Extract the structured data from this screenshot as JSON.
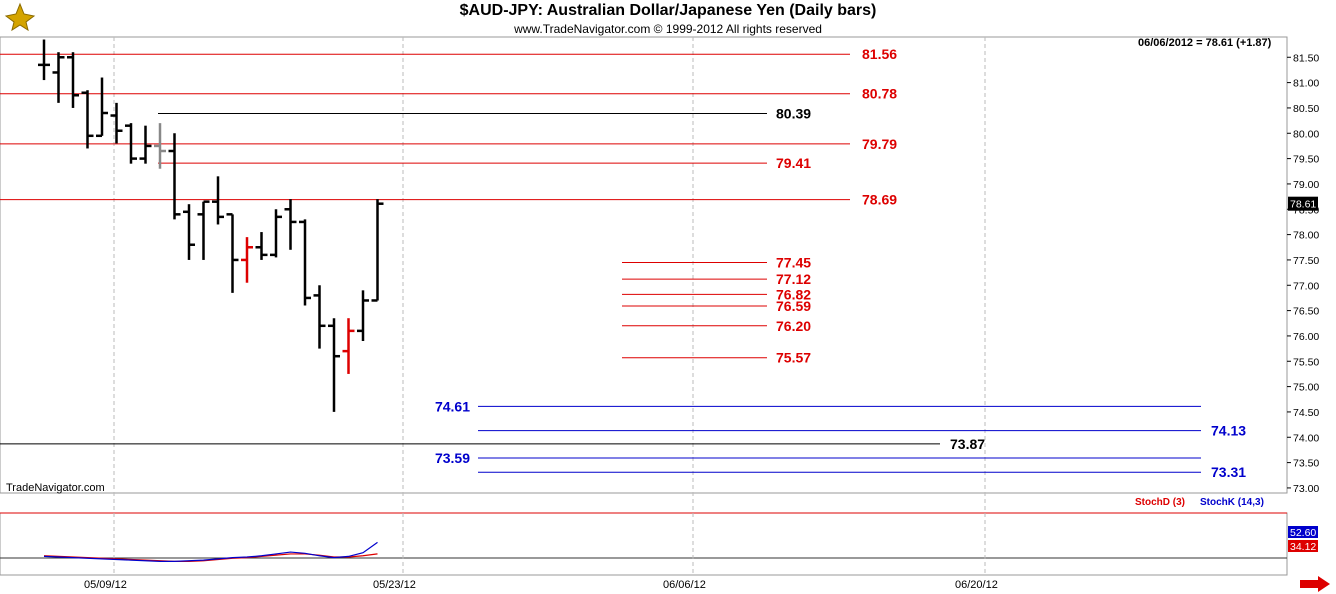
{
  "header": {
    "title": "$AUD-JPY:  Australian Dollar/Japanese Yen  (Daily bars)",
    "copyright": "www.TradeNavigator.com © 1999-2012 All rights reserved",
    "last_value_label": "06/06/2012 = 78.61 (+1.87)",
    "watermark": "TradeNavigator.com"
  },
  "indicator_panel": {
    "stochd_label": "StochD (3)",
    "stochk_label": "StochK (14,3)",
    "stochk_value": "52.60",
    "stochd_value": "34.12",
    "colors": {
      "stochd": "#dd0000",
      "stochk": "#0000cc"
    }
  },
  "chart_data": {
    "type": "ohlc",
    "title": "$AUD-JPY:  Australian Dollar/Japanese Yen  (Daily bars)",
    "price_axis": {
      "ylim": [
        72.9,
        81.9
      ],
      "ticks": [
        "73.00",
        "73.50",
        "74.00",
        "74.50",
        "75.00",
        "75.50",
        "76.00",
        "76.50",
        "77.00",
        "77.50",
        "78.00",
        "78.50",
        "79.00",
        "79.50",
        "80.00",
        "80.50",
        "81.00",
        "81.50"
      ],
      "last_price_tag": "78.61"
    },
    "date_axis": {
      "labels": [
        "05/09/12",
        "05/23/12",
        "06/06/12",
        "06/20/12"
      ]
    },
    "bars": [
      {
        "date": "05/01/12",
        "open": 81.35,
        "high": 81.85,
        "low": 81.05,
        "close": 81.35,
        "color": "black"
      },
      {
        "date": "05/02/12",
        "open": 81.2,
        "high": 81.6,
        "low": 80.6,
        "close": 81.5,
        "color": "black"
      },
      {
        "date": "05/03/12",
        "open": 81.5,
        "high": 81.6,
        "low": 80.5,
        "close": 80.75,
        "color": "black"
      },
      {
        "date": "05/04/12",
        "open": 80.8,
        "high": 80.85,
        "low": 79.7,
        "close": 79.95,
        "color": "black"
      },
      {
        "date": "05/07/12",
        "open": 79.95,
        "high": 81.1,
        "low": 79.95,
        "close": 80.4,
        "color": "black"
      },
      {
        "date": "05/08/12",
        "open": 80.35,
        "high": 80.6,
        "low": 79.8,
        "close": 80.05,
        "color": "black"
      },
      {
        "date": "05/09/12",
        "open": 80.15,
        "high": 80.2,
        "low": 79.4,
        "close": 79.5,
        "color": "black"
      },
      {
        "date": "05/10/12",
        "open": 79.5,
        "high": 80.15,
        "low": 79.4,
        "close": 79.75,
        "color": "black"
      },
      {
        "date": "05/11/12",
        "open": 79.75,
        "high": 80.2,
        "low": 79.3,
        "close": 79.65,
        "color": "gray"
      },
      {
        "date": "05/14/12",
        "open": 79.65,
        "high": 80.0,
        "low": 78.3,
        "close": 78.4,
        "color": "black"
      },
      {
        "date": "05/15/12",
        "open": 78.45,
        "high": 78.6,
        "low": 77.5,
        "close": 77.8,
        "color": "black"
      },
      {
        "date": "05/16/12",
        "open": 78.4,
        "high": 78.65,
        "low": 77.5,
        "close": 78.65,
        "color": "black"
      },
      {
        "date": "05/17/12",
        "open": 78.65,
        "high": 79.15,
        "low": 78.2,
        "close": 78.35,
        "color": "black"
      },
      {
        "date": "05/18/12",
        "open": 78.4,
        "high": 78.4,
        "low": 76.85,
        "close": 77.5,
        "color": "black"
      },
      {
        "date": "05/21/12",
        "open": 77.5,
        "high": 77.95,
        "low": 77.05,
        "close": 77.75,
        "color": "red"
      },
      {
        "date": "05/22/12",
        "open": 77.75,
        "high": 78.05,
        "low": 77.5,
        "close": 77.6,
        "color": "black"
      },
      {
        "date": "05/23/12",
        "open": 77.6,
        "high": 78.5,
        "low": 77.55,
        "close": 78.35,
        "color": "black"
      },
      {
        "date": "05/24/12",
        "open": 78.5,
        "high": 78.7,
        "low": 77.7,
        "close": 78.25,
        "color": "black"
      },
      {
        "date": "05/25/12",
        "open": 78.25,
        "high": 78.3,
        "low": 76.6,
        "close": 76.75,
        "color": "black"
      },
      {
        "date": "05/28/12",
        "open": 76.8,
        "high": 77.0,
        "low": 75.75,
        "close": 76.2,
        "color": "black"
      },
      {
        "date": "05/29/12",
        "open": 76.2,
        "high": 76.35,
        "low": 74.5,
        "close": 75.6,
        "color": "black"
      },
      {
        "date": "05/30/12",
        "open": 75.7,
        "high": 76.35,
        "low": 75.25,
        "close": 76.1,
        "color": "red"
      },
      {
        "date": "05/31/12",
        "open": 76.1,
        "high": 76.9,
        "low": 75.9,
        "close": 76.7,
        "color": "black"
      },
      {
        "date": "06/01/12",
        "open": 76.7,
        "high": 78.7,
        "low": 76.7,
        "close": 78.61,
        "color": "black"
      }
    ],
    "levels": [
      {
        "value": 81.56,
        "label": "81.56",
        "color": "red",
        "span": "full"
      },
      {
        "value": 80.78,
        "label": "80.78",
        "color": "red",
        "span": "full"
      },
      {
        "value": 80.39,
        "label": "80.39",
        "color": "black",
        "span": "partial"
      },
      {
        "value": 79.79,
        "label": "79.79",
        "color": "red",
        "span": "full"
      },
      {
        "value": 79.41,
        "label": "79.41",
        "color": "red",
        "span": "partial"
      },
      {
        "value": 78.69,
        "label": "78.69",
        "color": "red",
        "span": "full"
      },
      {
        "value": 77.45,
        "label": "77.45",
        "color": "red",
        "span": "short"
      },
      {
        "value": 77.12,
        "label": "77.12",
        "color": "red",
        "span": "short"
      },
      {
        "value": 76.82,
        "label": "76.82",
        "color": "red",
        "span": "short"
      },
      {
        "value": 76.59,
        "label": "76.59",
        "color": "red",
        "span": "short"
      },
      {
        "value": 76.2,
        "label": "76.20",
        "color": "red",
        "span": "short"
      },
      {
        "value": 75.57,
        "label": "75.57",
        "color": "red",
        "span": "short"
      },
      {
        "value": 74.61,
        "label": "74.61",
        "color": "blue",
        "span": "right-left-label"
      },
      {
        "value": 74.13,
        "label": "74.13",
        "color": "blue",
        "span": "right-right-label"
      },
      {
        "value": 73.87,
        "label": "73.87",
        "color": "black",
        "span": "long"
      },
      {
        "value": 73.59,
        "label": "73.59",
        "color": "blue",
        "span": "right-left-label"
      },
      {
        "value": 73.31,
        "label": "73.31",
        "color": "blue",
        "span": "right-right-label"
      }
    ],
    "stochastic": {
      "stochk": [
        30,
        29,
        28,
        27,
        26,
        25,
        24,
        23,
        22,
        22,
        23,
        24,
        26,
        28,
        29,
        31,
        34,
        37,
        35,
        31,
        28,
        30,
        36,
        52.6
      ],
      "stochd": [
        31,
        30,
        29,
        28,
        27,
        26,
        25,
        24,
        23,
        22,
        22,
        23,
        25,
        27,
        28,
        30,
        32,
        34,
        34,
        32,
        29,
        29,
        31,
        34.12
      ]
    },
    "colors": {
      "red": "#dd0000",
      "blue": "#0000cc",
      "gray": "#888888",
      "black": "#000000"
    }
  }
}
